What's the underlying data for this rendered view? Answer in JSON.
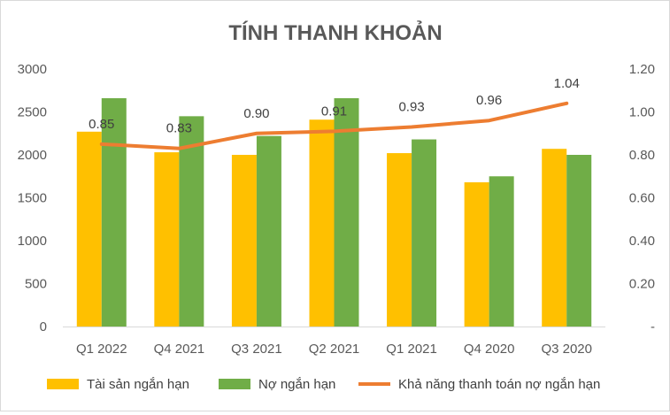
{
  "chart_data": {
    "type": "bar",
    "title": "TÍNH THANH KHOẢN",
    "categories": [
      "Q1 2022",
      "Q4 2021",
      "Q3 2021",
      "Q2 2021",
      "Q1 2021",
      "Q4 2020",
      "Q3 2020"
    ],
    "series": [
      {
        "name": "Tài sản ngắn hạn",
        "type": "bar",
        "axis": "left",
        "color": "#FFC000",
        "values": [
          2270,
          2030,
          2000,
          2410,
          2020,
          1680,
          2070
        ]
      },
      {
        "name": "Nợ ngắn hạn",
        "type": "bar",
        "axis": "left",
        "color": "#70AD47",
        "values": [
          2660,
          2450,
          2220,
          2660,
          2180,
          1750,
          2000
        ]
      },
      {
        "name": "Khả năng thanh toán nợ ngắn hạn",
        "type": "line",
        "axis": "right",
        "color": "#ED7D31",
        "values": [
          0.85,
          0.83,
          0.9,
          0.91,
          0.93,
          0.96,
          1.04
        ],
        "labels": [
          "0.85",
          "0.83",
          "0.90",
          "0.91",
          "0.93",
          "0.96",
          "1.04"
        ]
      }
    ],
    "ylim": [
      0,
      3000
    ],
    "y_ticks": [
      "0",
      "500",
      "1000",
      "1500",
      "2000",
      "2500",
      "3000"
    ],
    "y2lim": [
      0,
      1.2
    ],
    "y2_ticks": [
      "-",
      "0.20",
      "0.40",
      "0.60",
      "0.80",
      "1.00",
      "1.20"
    ],
    "grid": false,
    "legend_position": "bottom"
  }
}
